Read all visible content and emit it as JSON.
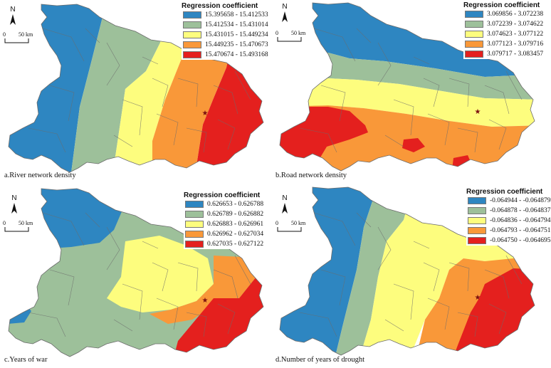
{
  "colors": {
    "blue": "#2e86c1",
    "green": "#9dc09a",
    "yellow": "#fdfd7e",
    "orange": "#f99839",
    "red": "#e4201e",
    "border": "#6b6b6b",
    "star": "#7b1010"
  },
  "map_common": {
    "north_label": "N",
    "scale_zero": "0",
    "scale_label": "50 km",
    "capital_marker": "star-icon"
  },
  "panels": [
    {
      "caption": "a.River network density",
      "legend_title": "Regression coefficient",
      "classes": [
        "15.395658 - 15.412533",
        "15.412534 - 15.431014",
        "15.431015 - 15.449234",
        "15.449235 - 15.470673",
        "15.470674 - 15.493168"
      ]
    },
    {
      "caption": "b.Road network density",
      "legend_title": "Regression coefficient",
      "classes": [
        "3.069856 - 3.072238",
        "3.072239 - 3.074622",
        "3.074623 - 3.077122",
        "3.077123 - 3.079716",
        "3.079717 - 3.083457"
      ]
    },
    {
      "caption": "c.Years of war",
      "legend_title": "Regression coefficient",
      "classes": [
        "0.626653 - 0.626788",
        "0.626789 - 0.626882",
        "0.626883 - 0.626961",
        "0.626962 - 0.627034",
        "0.627035 - 0.627122"
      ]
    },
    {
      "caption": "d.Number of years of drought",
      "legend_title": "Regression coefficient",
      "classes": [
        "-0.064944 - -0.064879",
        "-0.064878 - -0.064837",
        "-0.064836 - -0.064794",
        "-0.064793 - -0.064751",
        "-0.064750 - -0.064695"
      ]
    }
  ]
}
